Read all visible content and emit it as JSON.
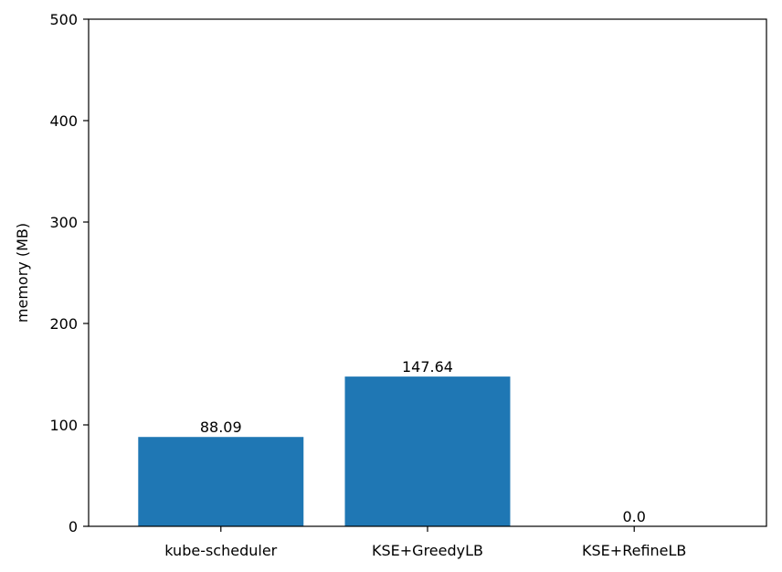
{
  "chart_data": {
    "type": "bar",
    "title": "",
    "xlabel": "",
    "ylabel": "memory (MB)",
    "categories": [
      "kube-scheduler",
      "KSE+GreedyLB",
      "KSE+RefineLB"
    ],
    "values": [
      88.09,
      147.64,
      0.0
    ],
    "value_labels": [
      "88.09",
      "147.64",
      "0.0"
    ],
    "ylim": [
      0,
      500
    ],
    "yticks": [
      0,
      100,
      200,
      300,
      400,
      500
    ],
    "ytick_labels": [
      "0",
      "100",
      "200",
      "300",
      "400",
      "500"
    ],
    "grid": false,
    "legend": "none",
    "bar_color": "#1f77b4"
  }
}
